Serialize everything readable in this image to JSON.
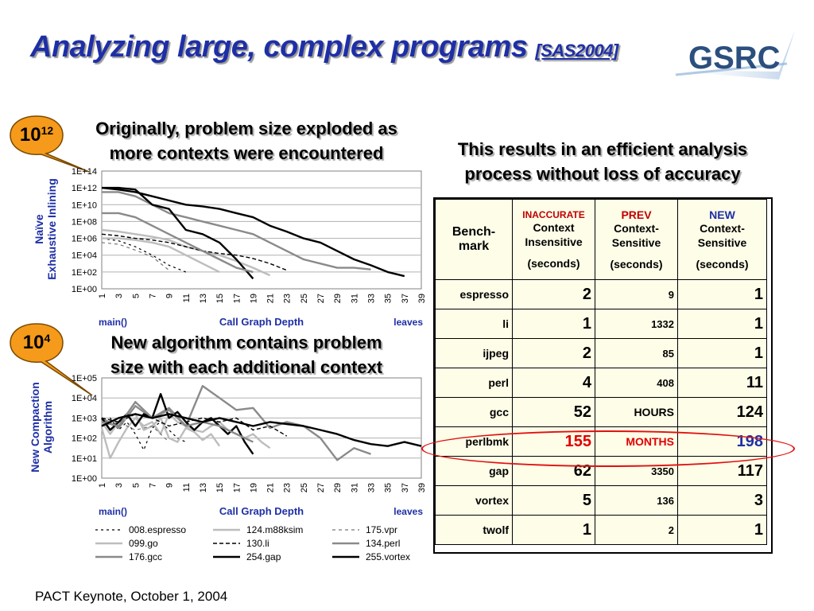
{
  "slide": {
    "title": "Analyzing large, complex programs",
    "title_ref": "[SAS2004]",
    "logo_text": "GSRC",
    "footer": "PACT Keynote, October 1, 2004"
  },
  "callouts": {
    "top_line1": "Originally, problem size exploded as",
    "top_line2": "more contexts were encountered",
    "mid_line1": "New algorithm contains problem",
    "mid_line2": "size with each additional context",
    "right_line1": "This results in an efficient analysis",
    "right_line2": "process without loss of accuracy"
  },
  "badges": {
    "top_base": "10",
    "top_exp": "12",
    "mid_base": "10",
    "mid_exp": "4"
  },
  "colors": {
    "title_blue": "#1e2fa6",
    "badge_orange": "#f59a1a",
    "highlight_red": "#e01010",
    "table_bg": "#fdfde8"
  },
  "chart_data": [
    {
      "type": "line",
      "ylabel_line1": "Naïve",
      "ylabel_line2": "Exhaustive Inlining",
      "xlabel": "Call Graph Depth",
      "xlabel_left": "main()",
      "xlabel_right": "leaves",
      "yticks": [
        "1E+00",
        "1E+02",
        "1E+04",
        "1E+06",
        "1E+08",
        "1E+10",
        "1E+12",
        "1E+14"
      ],
      "ylim": [
        0,
        14
      ],
      "xticks": [
        "1",
        "3",
        "5",
        "7",
        "9",
        "11",
        "13",
        "15",
        "17",
        "19",
        "21",
        "23",
        "25",
        "27",
        "29",
        "31",
        "33",
        "35",
        "37",
        "39"
      ],
      "xlim": [
        1,
        39
      ],
      "grid": true,
      "series": [
        {
          "name": "008.espresso",
          "style": "dash1",
          "x": [
            1,
            3,
            5,
            7,
            9,
            11
          ],
          "y": [
            6.0,
            5.7,
            5.0,
            4.0,
            2.8,
            2.0
          ]
        },
        {
          "name": "099.go",
          "style": "lgray",
          "x": [
            1,
            3,
            5,
            7,
            9,
            11,
            13,
            15,
            17,
            19,
            21
          ],
          "y": [
            7.0,
            6.8,
            6.5,
            6.2,
            5.8,
            5.0,
            4.5,
            4.0,
            3.3,
            2.5,
            1.6
          ]
        },
        {
          "name": "176.gcc",
          "style": "mgray",
          "x": [
            1,
            3,
            5,
            7,
            9,
            11,
            13,
            15,
            17,
            19,
            21,
            23,
            25,
            27,
            29,
            31,
            33
          ],
          "y": [
            11.5,
            11.5,
            11.0,
            10.0,
            9.0,
            8.5,
            8.0,
            7.5,
            7.0,
            6.5,
            5.5,
            4.5,
            3.5,
            3.0,
            2.5,
            2.5,
            2.3
          ]
        },
        {
          "name": "124.m88ksim",
          "style": "lgray",
          "x": [
            1,
            3,
            5,
            7,
            9,
            11,
            13,
            15
          ],
          "y": [
            6.0,
            6.0,
            5.8,
            5.5,
            5.0,
            4.0,
            3.0,
            2.0
          ]
        },
        {
          "name": "130.li",
          "style": "dash2",
          "x": [
            1,
            3,
            5,
            7,
            9,
            11,
            13,
            15,
            17,
            19,
            21,
            23
          ],
          "y": [
            6.5,
            6.3,
            6.0,
            5.8,
            5.5,
            5.0,
            4.5,
            4.2,
            4.0,
            3.6,
            3.0,
            2.2
          ]
        },
        {
          "name": "254.gap",
          "style": "black",
          "x": [
            1,
            3,
            5,
            7,
            9,
            11,
            13,
            15,
            17,
            19
          ],
          "y": [
            12.0,
            12.0,
            11.8,
            10.0,
            9.5,
            7.0,
            6.5,
            5.5,
            3.5,
            1.2
          ]
        },
        {
          "name": "175.vpr",
          "style": "dash3",
          "x": [
            1,
            3,
            5,
            7,
            9
          ],
          "y": [
            5.5,
            5.3,
            4.6,
            3.8,
            2.2
          ]
        },
        {
          "name": "134.perl",
          "style": "mgray",
          "x": [
            1,
            3,
            5,
            7,
            9,
            11,
            13,
            15,
            17,
            19
          ],
          "y": [
            9.0,
            9.0,
            8.5,
            7.5,
            6.5,
            5.5,
            4.5,
            3.5,
            2.5,
            2.0
          ]
        },
        {
          "name": "255.vortex",
          "style": "black",
          "x": [
            1,
            3,
            5,
            7,
            9,
            11,
            13,
            15,
            17,
            19,
            21,
            23,
            25,
            27,
            29,
            31,
            33,
            35,
            37
          ],
          "y": [
            12.0,
            11.8,
            11.5,
            11.0,
            10.5,
            10.0,
            9.8,
            9.5,
            9.0,
            8.5,
            7.5,
            6.8,
            6.0,
            5.5,
            4.5,
            3.5,
            2.8,
            2.0,
            1.5
          ]
        }
      ]
    },
    {
      "type": "line",
      "ylabel_line1": "New Compaction",
      "ylabel_line2": "Algorithm",
      "xlabel": "Call Graph Depth",
      "xlabel_left": "main()",
      "xlabel_right": "leaves",
      "yticks": [
        "1E+00",
        "1E+01",
        "1E+02",
        "1E+03",
        "1E+04",
        "1E+05"
      ],
      "ylim": [
        0,
        5
      ],
      "xticks": [
        "1",
        "3",
        "5",
        "7",
        "9",
        "11",
        "13",
        "15",
        "17",
        "19",
        "21",
        "23",
        "25",
        "27",
        "29",
        "31",
        "33",
        "35",
        "37",
        "39"
      ],
      "xlim": [
        1,
        39
      ],
      "grid": true,
      "series": [
        {
          "name": "008.espresso",
          "style": "dash1",
          "x": [
            1,
            2,
            3,
            4,
            5,
            6,
            7,
            8,
            9,
            10,
            11
          ],
          "y": [
            2.6,
            3.0,
            2.4,
            2.8,
            2.2,
            1.4,
            2.5,
            2.8,
            2.4,
            2.0,
            1.8
          ]
        },
        {
          "name": "099.go",
          "style": "lgray",
          "x": [
            1,
            2,
            3,
            4,
            5,
            6,
            7,
            8,
            9,
            10,
            11,
            12,
            13,
            14,
            15,
            16,
            17,
            18,
            19,
            20,
            21
          ],
          "y": [
            2.5,
            1.0,
            1.8,
            2.5,
            3.0,
            2.6,
            2.8,
            2.2,
            3.2,
            2.8,
            2.6,
            2.4,
            2.3,
            2.6,
            2.8,
            2.4,
            2.2,
            2.0,
            2.2,
            1.8,
            1.5
          ]
        },
        {
          "name": "176.gcc",
          "style": "mgray",
          "x": [
            1,
            3,
            5,
            7,
            9,
            11,
            13,
            15,
            17,
            19,
            21,
            23,
            25,
            27,
            29,
            31,
            33
          ],
          "y": [
            3.0,
            2.5,
            3.6,
            3.0,
            3.5,
            2.6,
            4.6,
            4.0,
            3.4,
            3.5,
            2.5,
            2.8,
            2.6,
            2.0,
            0.9,
            1.5,
            1.2
          ]
        },
        {
          "name": "124.m88ksim",
          "style": "lgray",
          "x": [
            1,
            2,
            3,
            4,
            5,
            6,
            7,
            8,
            9,
            10,
            11,
            12,
            13,
            14,
            15
          ],
          "y": [
            2.8,
            2.2,
            2.8,
            3.0,
            3.2,
            2.4,
            2.6,
            3.0,
            2.0,
            1.8,
            2.5,
            2.3,
            1.9,
            2.2,
            1.6
          ]
        },
        {
          "name": "130.li",
          "style": "dash2",
          "x": [
            1,
            3,
            5,
            7,
            9,
            11,
            13,
            15,
            17,
            19,
            21,
            23
          ],
          "y": [
            3.0,
            2.8,
            3.2,
            3.0,
            2.6,
            2.8,
            3.0,
            2.8,
            3.0,
            2.4,
            2.6,
            2.1
          ]
        },
        {
          "name": "254.gap",
          "style": "black",
          "x": [
            1,
            2,
            3,
            4,
            5,
            6,
            7,
            8,
            9,
            10,
            11,
            12,
            13,
            14,
            15,
            16,
            17,
            18,
            19
          ],
          "y": [
            3.0,
            2.4,
            2.8,
            3.2,
            2.6,
            3.2,
            3.0,
            4.2,
            3.0,
            3.3,
            2.8,
            2.4,
            2.8,
            3.0,
            2.6,
            2.2,
            2.6,
            1.8,
            1.2
          ]
        },
        {
          "name": "175.vpr",
          "style": "dash3",
          "x": [
            1,
            3,
            5,
            7,
            9
          ],
          "y": [
            2.6,
            2.8,
            2.4,
            2.6,
            1.8
          ]
        },
        {
          "name": "134.perl",
          "style": "mgray",
          "x": [
            1,
            3,
            5,
            7,
            9,
            11,
            13,
            15,
            17,
            19
          ],
          "y": [
            2.8,
            2.6,
            3.8,
            3.0,
            3.4,
            2.6,
            2.8,
            2.6,
            2.2,
            1.8
          ]
        },
        {
          "name": "255.vortex",
          "style": "black",
          "x": [
            1,
            3,
            5,
            7,
            9,
            11,
            13,
            15,
            17,
            19,
            21,
            23,
            25,
            27,
            29,
            31,
            33,
            35,
            37,
            39
          ],
          "y": [
            2.6,
            3.0,
            3.2,
            3.0,
            3.2,
            3.0,
            2.8,
            3.0,
            2.8,
            2.6,
            2.8,
            2.7,
            2.6,
            2.4,
            2.2,
            1.9,
            1.7,
            1.6,
            1.8,
            1.6
          ]
        }
      ]
    }
  ],
  "legend": [
    {
      "name": "008.espresso",
      "style": "dash1"
    },
    {
      "name": "124.m88ksim",
      "style": "lgray"
    },
    {
      "name": "175.vpr",
      "style": "dash3"
    },
    {
      "name": "099.go",
      "style": "lgray"
    },
    {
      "name": "130.li",
      "style": "dash2"
    },
    {
      "name": "134.perl",
      "style": "mgray"
    },
    {
      "name": "176.gcc",
      "style": "mgray"
    },
    {
      "name": "254.gap",
      "style": "black"
    },
    {
      "name": "255.vortex",
      "style": "black"
    }
  ],
  "table": {
    "header": {
      "bench": "Bench-mark",
      "col1_tag": "INACCURATE",
      "col1_l1": "Context",
      "col1_l2": "Insensitive",
      "col1_unit": "(seconds)",
      "col2_tag": "PREV",
      "col2_l1": "Context-",
      "col2_l2": "Sensitive",
      "col2_unit": "(seconds)",
      "col3_tag": "NEW",
      "col3_l1": "Context-",
      "col3_l2": "Sensitive",
      "col3_unit": "(seconds)"
    },
    "rows": [
      {
        "name": "espresso",
        "ci": "2",
        "prev": "9",
        "new": "1"
      },
      {
        "name": "li",
        "ci": "1",
        "prev": "1332",
        "new": "1"
      },
      {
        "name": "ijpeg",
        "ci": "2",
        "prev": "85",
        "new": "1"
      },
      {
        "name": "perl",
        "ci": "4",
        "prev": "408",
        "new": "11"
      },
      {
        "name": "gcc",
        "ci": "52",
        "prev": "HOURS",
        "new": "124"
      },
      {
        "name": "perlbmk",
        "ci": "155",
        "prev": "MONTHS",
        "new": "198"
      },
      {
        "name": "gap",
        "ci": "62",
        "prev": "3350",
        "new": "117"
      },
      {
        "name": "vortex",
        "ci": "5",
        "prev": "136",
        "new": "3"
      },
      {
        "name": "twolf",
        "ci": "1",
        "prev": "2",
        "new": "1"
      }
    ]
  }
}
